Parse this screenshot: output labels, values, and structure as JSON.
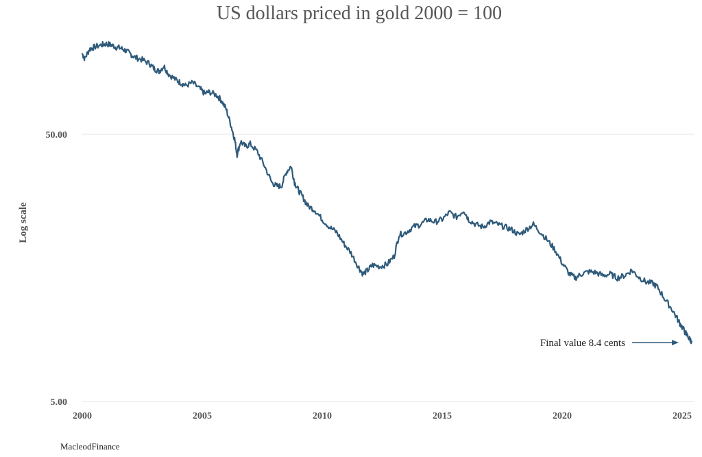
{
  "chart_data": {
    "type": "line",
    "title": "US dollars priced in gold 2000 = 100",
    "ylabel": "Log scale",
    "xlabel": "",
    "y_scale": "log",
    "ylim": [
      5,
      130
    ],
    "xlim": [
      2000,
      2025.4
    ],
    "grid": "horizontal",
    "x_ticks": [
      "2000",
      "2005",
      "2010",
      "2015",
      "2020",
      "2025"
    ],
    "y_ticks": [
      "50.00",
      "5.00"
    ],
    "annotation": "Final value 8.4 cents",
    "source": "MacleodFinance",
    "color": "#2e5a7a",
    "series": [
      {
        "x": [
          2000.0,
          2000.1,
          2000.3,
          2000.5,
          2000.8,
          2001.0,
          2001.2,
          2001.4,
          2001.6,
          2001.8,
          2002.0,
          2002.2,
          2002.5,
          2002.8,
          2003.0,
          2003.2,
          2003.4,
          2003.6,
          2003.9,
          2004.1,
          2004.3,
          2004.6,
          2004.9,
          2005.1,
          2005.3,
          2005.6,
          2005.8,
          2006.0,
          2006.2,
          2006.35,
          2006.45,
          2006.6,
          2006.8,
          2007.0,
          2007.3,
          2007.6,
          2007.9,
          2008.1,
          2008.3,
          2008.5,
          2008.7,
          2008.85,
          2009.0,
          2009.2,
          2009.4,
          2009.7,
          2010.0,
          2010.3,
          2010.6,
          2010.9,
          2011.2,
          2011.5,
          2011.7,
          2011.9,
          2012.1,
          2012.4,
          2012.7,
          2013.0,
          2013.2,
          2013.5,
          2013.8,
          2014.1,
          2014.4,
          2014.7,
          2015.0,
          2015.3,
          2015.6,
          2015.9,
          2016.1,
          2016.4,
          2016.7,
          2017.0,
          2017.3,
          2017.6,
          2017.9,
          2018.2,
          2018.5,
          2018.8,
          2019.1,
          2019.4,
          2019.7,
          2020.0,
          2020.3,
          2020.55,
          2020.8,
          2021.1,
          2021.4,
          2021.7,
          2022.0,
          2022.3,
          2022.6,
          2022.9,
          2023.2,
          2023.5,
          2023.8,
          2024.0,
          2024.3,
          2024.6,
          2024.85,
          2025.0,
          2025.15,
          2025.3,
          2025.4
        ],
        "y": [
          100,
          96,
          104,
          106,
          108,
          109,
          108,
          106,
          105,
          103,
          100,
          97,
          95,
          92,
          88,
          86,
          90,
          84,
          80,
          78,
          76,
          78,
          74,
          71,
          72,
          70,
          67,
          62,
          54,
          48,
          42,
          47,
          45,
          46,
          43,
          38,
          33,
          32,
          32,
          36,
          38,
          33,
          31,
          29,
          27,
          26,
          24,
          22.5,
          21.5,
          19.5,
          18,
          16,
          15,
          15.5,
          16.2,
          16,
          16.3,
          17.5,
          21,
          21.5,
          22.5,
          23,
          24,
          23.5,
          24,
          25.5,
          24.5,
          26,
          24,
          23,
          22.5,
          23.5,
          23,
          22.5,
          22,
          21,
          22,
          23,
          21.5,
          20,
          18.5,
          16.5,
          15,
          14.5,
          15,
          15.3,
          15.2,
          14.8,
          15.0,
          14.5,
          14.8,
          15.5,
          14.6,
          14.0,
          13.8,
          13.3,
          12.0,
          11.0,
          10.0,
          9.5,
          9.0,
          8.6,
          8.4
        ]
      }
    ]
  }
}
